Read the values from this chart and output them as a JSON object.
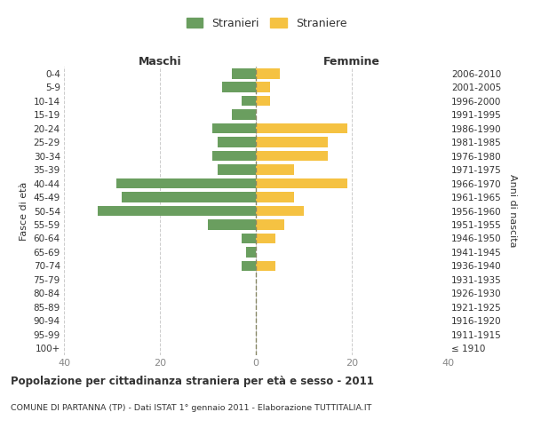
{
  "age_groups": [
    "100+",
    "95-99",
    "90-94",
    "85-89",
    "80-84",
    "75-79",
    "70-74",
    "65-69",
    "60-64",
    "55-59",
    "50-54",
    "45-49",
    "40-44",
    "35-39",
    "30-34",
    "25-29",
    "20-24",
    "15-19",
    "10-14",
    "5-9",
    "0-4"
  ],
  "birth_years": [
    "≤ 1910",
    "1911-1915",
    "1916-1920",
    "1921-1925",
    "1926-1930",
    "1931-1935",
    "1936-1940",
    "1941-1945",
    "1946-1950",
    "1951-1955",
    "1956-1960",
    "1961-1965",
    "1966-1970",
    "1971-1975",
    "1976-1980",
    "1981-1985",
    "1986-1990",
    "1991-1995",
    "1996-2000",
    "2001-2005",
    "2006-2010"
  ],
  "males": [
    0,
    0,
    0,
    0,
    0,
    0,
    3,
    2,
    3,
    10,
    33,
    28,
    29,
    8,
    9,
    8,
    9,
    5,
    3,
    7,
    5
  ],
  "females": [
    0,
    0,
    0,
    0,
    0,
    0,
    4,
    0,
    4,
    6,
    10,
    8,
    19,
    8,
    15,
    15,
    19,
    0,
    3,
    3,
    5
  ],
  "male_color": "#6a9e5f",
  "female_color": "#f5c242",
  "bar_height": 0.75,
  "xlim": [
    -40,
    40
  ],
  "xlabel_left": "Maschi",
  "xlabel_right": "Femmine",
  "ylabel_left": "Fasce di età",
  "ylabel_right": "Anni di nascita",
  "legend_male": "Stranieri",
  "legend_female": "Straniere",
  "title": "Popolazione per cittadinanza straniera per età e sesso - 2011",
  "subtitle": "COMUNE DI PARTANNA (TP) - Dati ISTAT 1° gennaio 2011 - Elaborazione TUTTITALIA.IT",
  "background_color": "#ffffff",
  "grid_color": "#cccccc",
  "center_line_color": "#888866",
  "tick_color": "#888888",
  "text_color": "#333333"
}
